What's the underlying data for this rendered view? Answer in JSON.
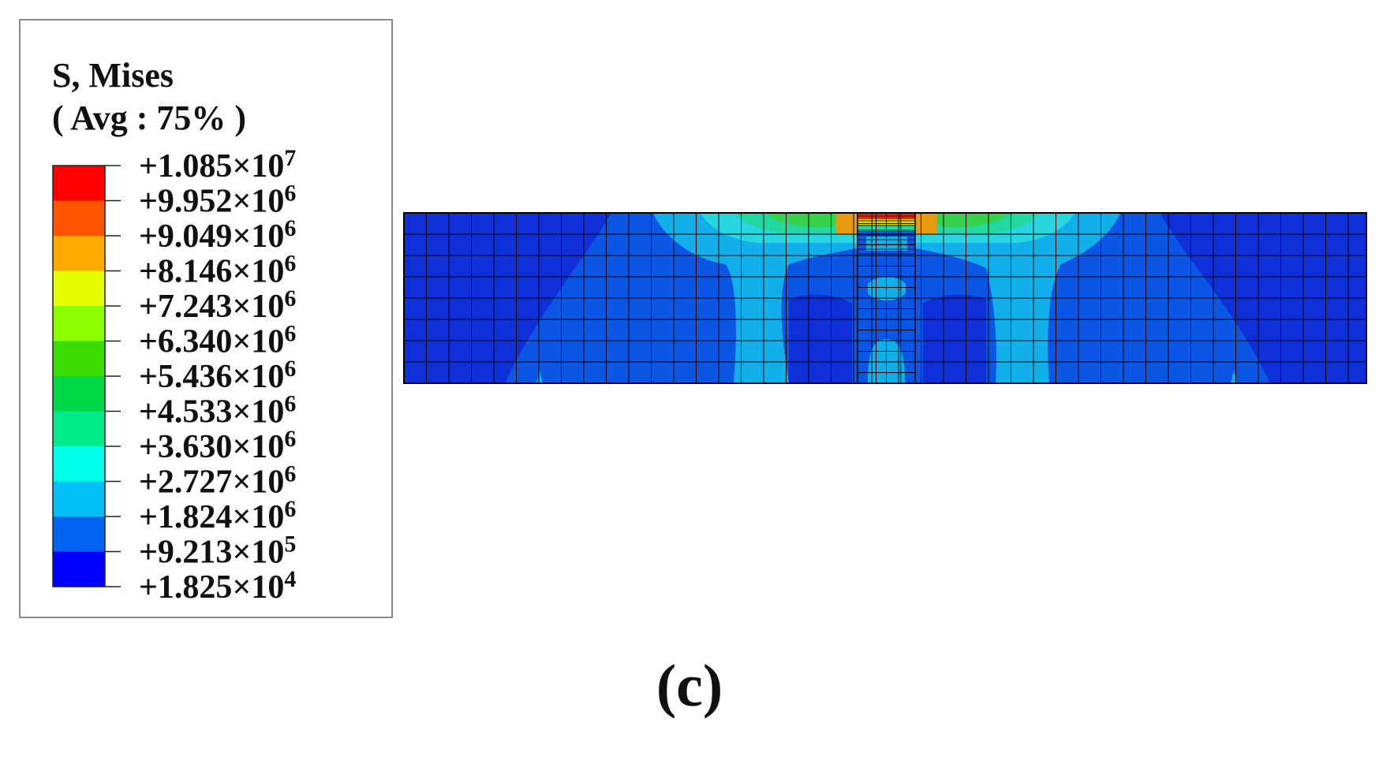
{
  "legend": {
    "title": "S, Mises",
    "subtitle": "( Avg : 75% )",
    "levels": [
      {
        "mantissa": "+1.085",
        "exponent": "7",
        "color": "#ff0000"
      },
      {
        "mantissa": "+9.952",
        "exponent": "6",
        "color": "#ff5500"
      },
      {
        "mantissa": "+9.049",
        "exponent": "6",
        "color": "#ffaa00"
      },
      {
        "mantissa": "+8.146",
        "exponent": "6",
        "color": "#e6ff00"
      },
      {
        "mantissa": "+7.243",
        "exponent": "6",
        "color": "#8cff00"
      },
      {
        "mantissa": "+6.340",
        "exponent": "6",
        "color": "#3cdc00"
      },
      {
        "mantissa": "+5.436",
        "exponent": "6",
        "color": "#00d84a"
      },
      {
        "mantissa": "+4.533",
        "exponent": "6",
        "color": "#00ea8a"
      },
      {
        "mantissa": "+3.630",
        "exponent": "6",
        "color": "#00ffe6"
      },
      {
        "mantissa": "+2.727",
        "exponent": "6",
        "color": "#00bff2"
      },
      {
        "mantissa": "+1.824",
        "exponent": "6",
        "color": "#0064f0"
      },
      {
        "mantissa": "+9.213",
        "exponent": "5",
        "color": "#0000ff"
      },
      {
        "mantissa": "+1.825",
        "exponent": "4",
        "color": null
      }
    ]
  },
  "colors": {
    "deep_blue": "#0f2fd8",
    "blue": "#0c56e6",
    "light_blue": "#12b0ea",
    "cyan": "#28d6e0",
    "teal": "#22d7a0",
    "green": "#37d24a",
    "yellow": "#e4d216",
    "orange": "#e59a10",
    "red": "#e42a10",
    "mesh_line": "#000000"
  },
  "panel_label": "(c)"
}
